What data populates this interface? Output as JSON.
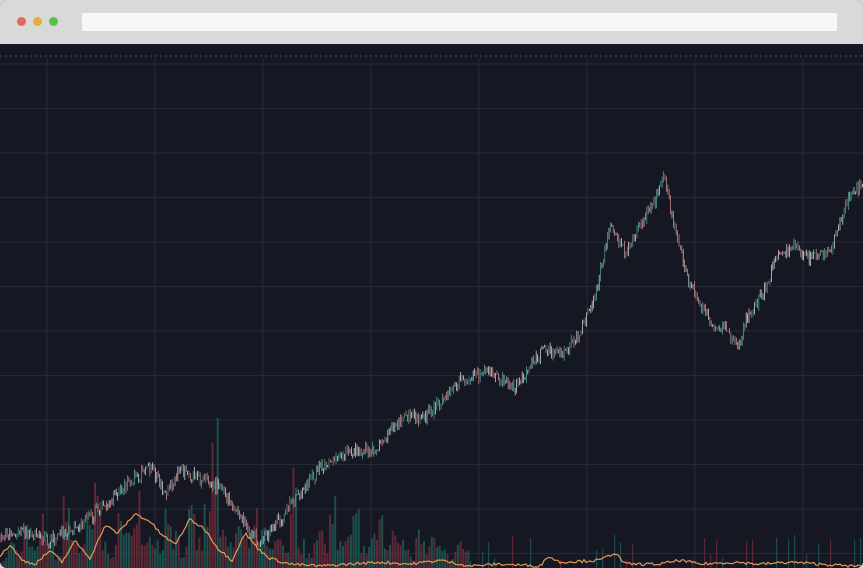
{
  "browser": {
    "close_color": "#e0695b",
    "minimize_color": "#e0b13a",
    "maximize_color": "#5cbd4a",
    "address": ""
  },
  "colors": {
    "background": "#151722",
    "grid": "#262a38",
    "price_up": "#4e9a8c",
    "price_down": "#c98686",
    "price_neutral": "#c9c9cc",
    "volume_up": "#1d5a55",
    "volume_down": "#6d2b38",
    "indicator": "#e09a58"
  },
  "chart_data": {
    "type": "candlestick",
    "title": "",
    "xlabel": "",
    "ylabel": "",
    "grid": true,
    "legend": "none",
    "ylim": [
      0,
      100
    ],
    "volume_ylim": [
      0,
      100
    ],
    "price_keypoints": {
      "x": [
        0,
        25,
        48,
        76,
        106,
        130,
        152,
        165,
        180,
        200,
        220,
        238,
        250,
        262,
        280,
        300,
        330,
        360,
        380,
        405,
        420,
        440,
        460,
        490,
        515,
        528,
        545,
        562,
        580,
        595,
        610,
        625,
        640,
        655,
        663,
        675,
        688,
        700,
        712,
        725,
        738,
        746,
        760,
        775,
        795,
        810,
        832,
        845,
        863
      ],
      "y": [
        3,
        4,
        2,
        5,
        11,
        17,
        20,
        13,
        19,
        17,
        15,
        9,
        4,
        2,
        7,
        14,
        22,
        24,
        25,
        33,
        31,
        36,
        41,
        43,
        39,
        44,
        49,
        47,
        53,
        62,
        79,
        72,
        79,
        85,
        91,
        78,
        66,
        60,
        55,
        54,
        49,
        56,
        61,
        70,
        74,
        71,
        73,
        84,
        90
      ]
    },
    "volume_x_range": [
      0,
      470
    ],
    "volume_values": [
      5,
      12,
      8,
      18,
      9,
      24,
      14,
      7,
      30,
      16,
      10,
      22,
      35,
      12,
      9,
      28,
      15,
      40,
      11,
      20,
      14,
      32,
      18,
      9,
      25,
      13,
      27,
      60,
      16,
      12,
      21,
      14,
      30,
      17,
      9,
      26,
      12,
      40,
      13,
      8,
      20,
      15,
      33,
      11,
      18,
      26,
      9,
      14,
      22,
      10,
      16,
      12,
      8,
      19,
      11,
      14,
      9,
      7,
      12,
      8
    ],
    "indicator_keypoints": {
      "x": [
        0,
        10,
        22,
        35,
        50,
        62,
        75,
        90,
        105,
        118,
        135,
        150,
        160,
        175,
        190,
        205,
        218,
        232,
        245,
        258,
        270,
        290,
        320,
        350,
        380,
        410,
        440,
        470,
        500,
        540,
        548,
        560,
        600,
        615,
        625,
        660,
        680,
        700,
        735,
        760,
        790,
        820,
        850,
        863
      ],
      "y": [
        6,
        12,
        4,
        2,
        9,
        3,
        14,
        5,
        22,
        18,
        28,
        24,
        18,
        12,
        25,
        20,
        10,
        4,
        18,
        10,
        5,
        2,
        1,
        2,
        3,
        2,
        4,
        1,
        2,
        1,
        6,
        3,
        4,
        8,
        2,
        2,
        4,
        2,
        3,
        2,
        3,
        2,
        1,
        1
      ]
    }
  }
}
